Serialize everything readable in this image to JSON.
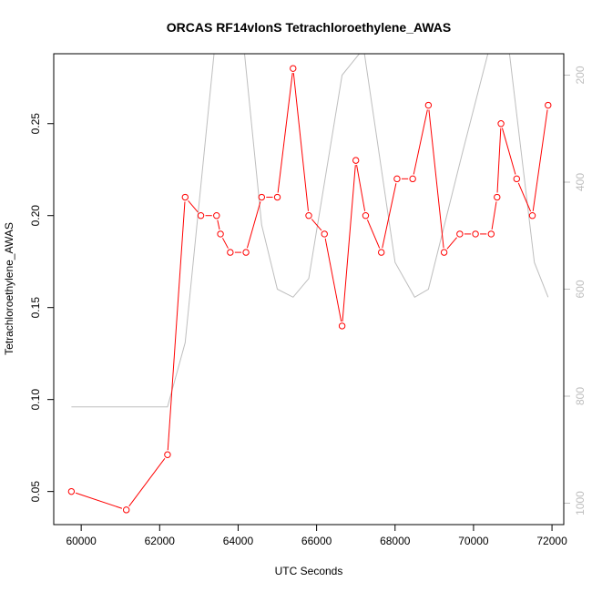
{
  "chart_data": {
    "type": "line",
    "title": "ORCAS RF14vlonS Tetrachloroethylene_AWAS",
    "xlabel": "UTC Seconds",
    "ylabel": "Tetrachloroethylene_AWAS",
    "xlim": [
      59300,
      72300
    ],
    "ylim": [
      0.032,
      0.288
    ],
    "y2lim": [
      1040,
      160
    ],
    "x_ticks": [
      60000,
      62000,
      64000,
      66000,
      68000,
      70000,
      72000
    ],
    "y_ticks": [
      0.05,
      0.1,
      0.15,
      0.2,
      0.25
    ],
    "y2_ticks": [
      200,
      400,
      600,
      800,
      1000
    ],
    "grid": false,
    "colors": {
      "primary": "#ff0000",
      "secondary": "#bebebe",
      "frame": "#000000"
    },
    "series": [
      {
        "axis": "left",
        "style": "line+points",
        "x": [
          59750,
          61150,
          62200,
          62650,
          63050,
          63450,
          63550,
          63800,
          64200,
          64600,
          65000,
          65400,
          65800,
          66200,
          66650,
          67000,
          67250,
          67650,
          68050,
          68450,
          68850,
          69250,
          69650,
          70050,
          70450,
          70600,
          70700,
          71100,
          71500,
          71900
        ],
        "y": [
          0.05,
          0.04,
          0.07,
          0.21,
          0.2,
          0.2,
          0.19,
          0.18,
          0.18,
          0.21,
          0.21,
          0.28,
          0.2,
          0.19,
          0.14,
          0.23,
          0.2,
          0.18,
          0.22,
          0.22,
          0.26,
          0.18,
          0.19,
          0.19,
          0.19,
          0.21,
          0.25,
          0.22,
          0.2,
          0.26
        ]
      },
      {
        "axis": "right",
        "style": "line",
        "x": [
          59750,
          62200,
          62650,
          63400,
          64150,
          64600,
          65000,
          65400,
          65800,
          66650,
          67200,
          68000,
          68500,
          68850,
          69700,
          70400,
          70900,
          71550,
          71900
        ],
        "y": [
          820,
          820,
          700,
          150,
          150,
          480,
          600,
          615,
          580,
          200,
          150,
          550,
          615,
          600,
          350,
          150,
          150,
          550,
          615
        ]
      }
    ]
  }
}
